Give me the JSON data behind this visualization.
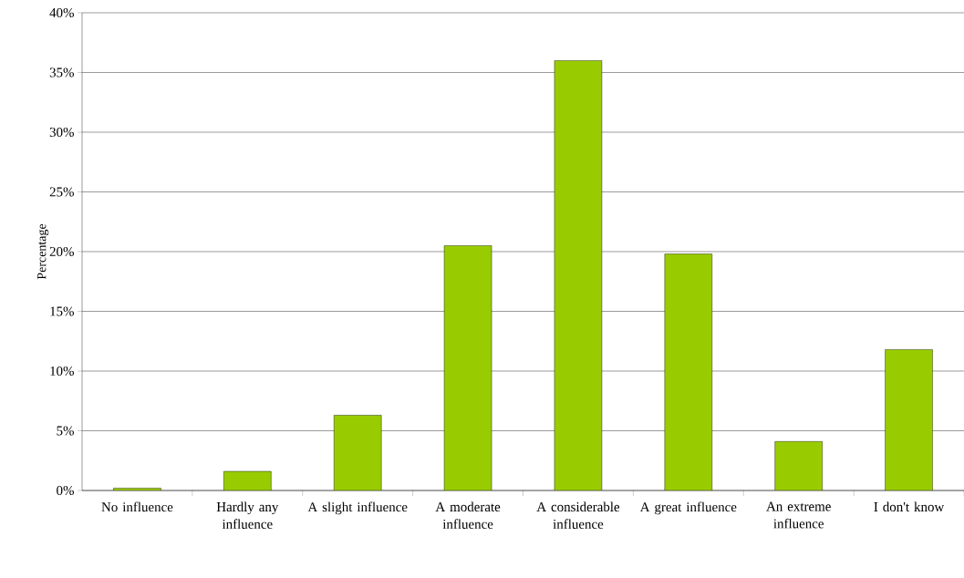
{
  "chart_data": {
    "type": "bar",
    "ylabel": "Percentage",
    "categories": [
      "No influence",
      "Hardly any influence",
      "A slight influence",
      "A moderate influence",
      "A considerable influence",
      "A great influence",
      "An extreme influence",
      "I don't know"
    ],
    "values": [
      0.2,
      1.6,
      6.3,
      20.5,
      36.0,
      19.8,
      4.1,
      11.8
    ],
    "color": "#99cc00",
    "ylim": [
      0,
      40
    ],
    "yticks": [
      {
        "value": 0,
        "label": "0%"
      },
      {
        "value": 5,
        "label": "5%"
      },
      {
        "value": 10,
        "label": "10%"
      },
      {
        "value": 15,
        "label": "15%"
      },
      {
        "value": 20,
        "label": "20%"
      },
      {
        "value": 25,
        "label": "25%"
      },
      {
        "value": 30,
        "label": "30%"
      },
      {
        "value": 35,
        "label": "35%"
      },
      {
        "value": 40,
        "label": "40%"
      }
    ],
    "grid": "y"
  }
}
